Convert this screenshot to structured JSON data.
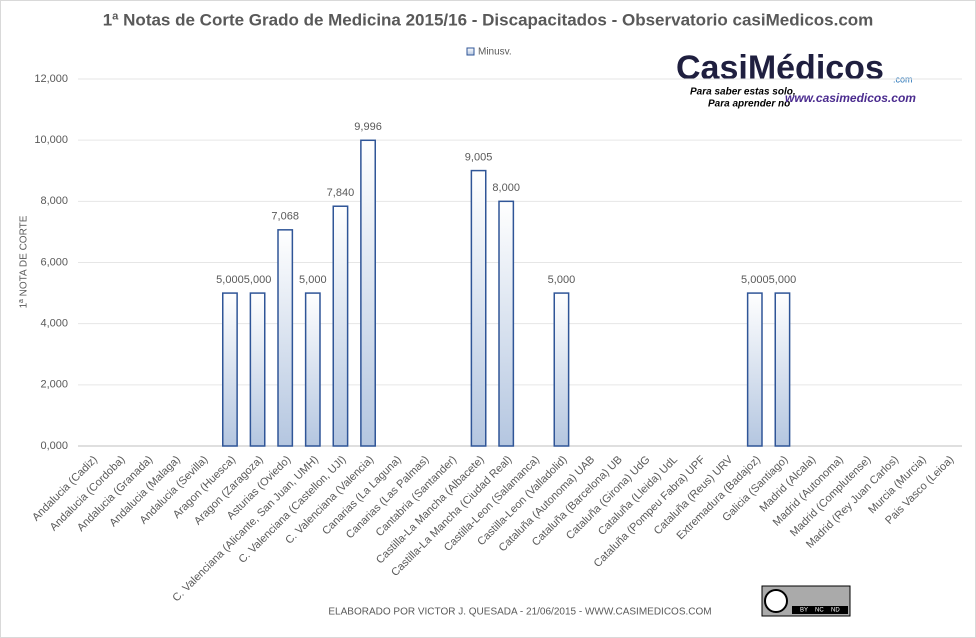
{
  "chart_data": {
    "type": "bar",
    "title": "1ª Notas de Corte Grado de Medicina 2015/16 - Discapacitados - Observatorio casiMedicos.com",
    "y_label": "1ª NOTA DE CORTE",
    "footer": "ELABORADO POR VICTOR J. QUESADA - 21/06/2015 - WWW.CASIMEDICOS.COM",
    "logo": {
      "name": "CasiMédicos",
      "suffix": ".com",
      "tagline1": "Para saber estas solo,",
      "tagline2": "Para aprender no",
      "url": "www.casimedicos.com"
    },
    "license": [
      "BY",
      "NC",
      "ND"
    ],
    "categories": [
      "Andalucia (Cadiz)",
      "Andalucia (Cordoba)",
      "Andalucia (Granada)",
      "Andalucia (Malaga)",
      "Andalucia (Sevilla)",
      "Aragon (Huesca)",
      "Aragon (Zaragoza)",
      "Asturias (Oviedo)",
      "C. Valenciana (Alicante, San Juan, UMH)",
      "C. Valenciana (Castellon, UJI)",
      "C. Valenciana (Valencia)",
      "Canarias (La Laguna)",
      "Canarias (Las Palmas)",
      "Cantabria (Santander)",
      "Castilla-La Mancha (Albacete)",
      "Castilla-La Mancha (Ciudad Real)",
      "Castilla-Leon (Salamanca)",
      "Castilla-Leon (Valladolid)",
      "Cataluña (Autonoma) UAB",
      "Cataluña (Barcelona) UB",
      "Cataluña (Girona) UdG",
      "Cataluña (Lleida) UdL",
      "Cataluña (Pompeu Fabra) UPF",
      "Cataluña (Reus) URV",
      "Extremadura (Badajoz)",
      "Galicia (Santiago)",
      "Madrid (Alcala)",
      "Madrid (Autonoma)",
      "Madrid (Complutense)",
      "Madrid (Rey Juan Carlos)",
      "Murcia (Murcia)",
      "Pais Vasco (Leioa)"
    ],
    "series": [
      {
        "name": "Minusv.",
        "color": "#2f5597",
        "values": [
          null,
          null,
          null,
          null,
          null,
          5000,
          5000,
          7068,
          5000,
          7840,
          9996,
          null,
          null,
          null,
          9005,
          8000,
          null,
          5000,
          null,
          null,
          null,
          null,
          null,
          null,
          5000,
          5000,
          null,
          null,
          null,
          null,
          null,
          null
        ],
        "value_labels": [
          null,
          null,
          null,
          null,
          null,
          "5,000",
          "5,000",
          "7,068",
          "5,000",
          "7,840",
          "9,996",
          null,
          null,
          null,
          "9,005",
          "8,000",
          null,
          "5,000",
          null,
          null,
          null,
          null,
          null,
          null,
          "5,000",
          "5,000",
          null,
          null,
          null,
          null,
          null,
          null
        ]
      }
    ],
    "ylim": [
      0,
      12000
    ],
    "yticks": [
      {
        "value": 0,
        "label": "0,000"
      },
      {
        "value": 2000,
        "label": "2,000"
      },
      {
        "value": 4000,
        "label": "4,000"
      },
      {
        "value": 6000,
        "label": "6,000"
      },
      {
        "value": 8000,
        "label": "8,000"
      },
      {
        "value": 10000,
        "label": "10,000"
      },
      {
        "value": 12000,
        "label": "12,000"
      }
    ],
    "grid": true,
    "legend": "top"
  }
}
